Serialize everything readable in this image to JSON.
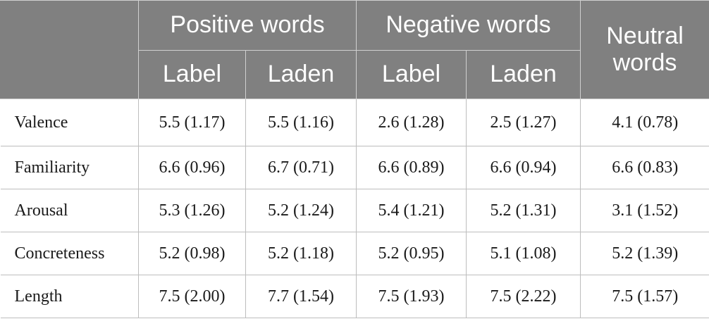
{
  "header": {
    "corner": "",
    "groups": [
      {
        "label": "Positive words",
        "sub": [
          "Label",
          "Laden"
        ]
      },
      {
        "label": "Negative words",
        "sub": [
          "Label",
          "Laden"
        ]
      },
      {
        "label": "Neutral words"
      }
    ]
  },
  "rows": [
    {
      "label": "Valence",
      "cells": [
        "5.5 (1.17)",
        "5.5 (1.16)",
        "2.6 (1.28)",
        "2.5 (1.27)",
        "4.1 (0.78)"
      ]
    },
    {
      "label": "Familiarity",
      "cells": [
        "6.6 (0.96)",
        "6.7 (0.71)",
        "6.6 (0.89)",
        "6.6 (0.94)",
        "6.6 (0.83)"
      ]
    },
    {
      "label": "Arousal",
      "cells": [
        "5.3 (1.26)",
        "5.2 (1.24)",
        "5.4 (1.21)",
        "5.2 (1.31)",
        "3.1 (1.52)"
      ]
    },
    {
      "label": "Concreteness",
      "cells": [
        "5.2 (0.98)",
        "5.2 (1.18)",
        "5.2 (0.95)",
        "5.1 (1.08)",
        "5.2 (1.39)"
      ]
    },
    {
      "label": "Length",
      "cells": [
        "7.5 (2.00)",
        "7.7 (1.54)",
        "7.5 (1.93)",
        "7.5 (2.22)",
        "7.5 (1.57)"
      ]
    }
  ],
  "colors": {
    "header_bg": "#808080",
    "header_text": "#ffffff",
    "grid": "#bdbdbd"
  }
}
